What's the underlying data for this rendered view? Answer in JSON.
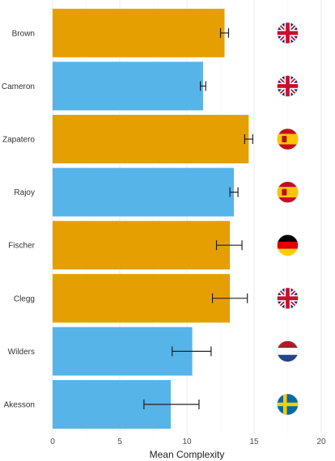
{
  "chart_data": {
    "type": "bar",
    "orientation": "horizontal",
    "categories": [
      "Brown",
      "Cameron",
      "Zapatero",
      "Rajoy",
      "Fischer",
      "Clegg",
      "Wilders",
      "Akesson"
    ],
    "values": [
      12.8,
      11.2,
      14.6,
      13.5,
      13.2,
      13.2,
      10.4,
      8.8
    ],
    "error_low": [
      12.5,
      11.0,
      14.3,
      13.2,
      12.2,
      11.9,
      8.9,
      6.8
    ],
    "error_high": [
      13.1,
      11.4,
      14.9,
      13.8,
      14.1,
      14.5,
      11.8,
      10.9
    ],
    "bar_colors": [
      "#E69F00",
      "#56B4E9",
      "#E69F00",
      "#56B4E9",
      "#E69F00",
      "#E69F00",
      "#56B4E9",
      "#56B4E9"
    ],
    "flags": [
      "uk",
      "uk",
      "spain",
      "spain",
      "germany",
      "uk",
      "netherlands",
      "sweden"
    ],
    "xlim": [
      0,
      20
    ],
    "xticks": [
      0,
      5,
      10,
      15,
      20
    ],
    "xlabel": "Mean Complexity",
    "ylabel": "",
    "title": "",
    "grid": true,
    "legend": "none"
  }
}
